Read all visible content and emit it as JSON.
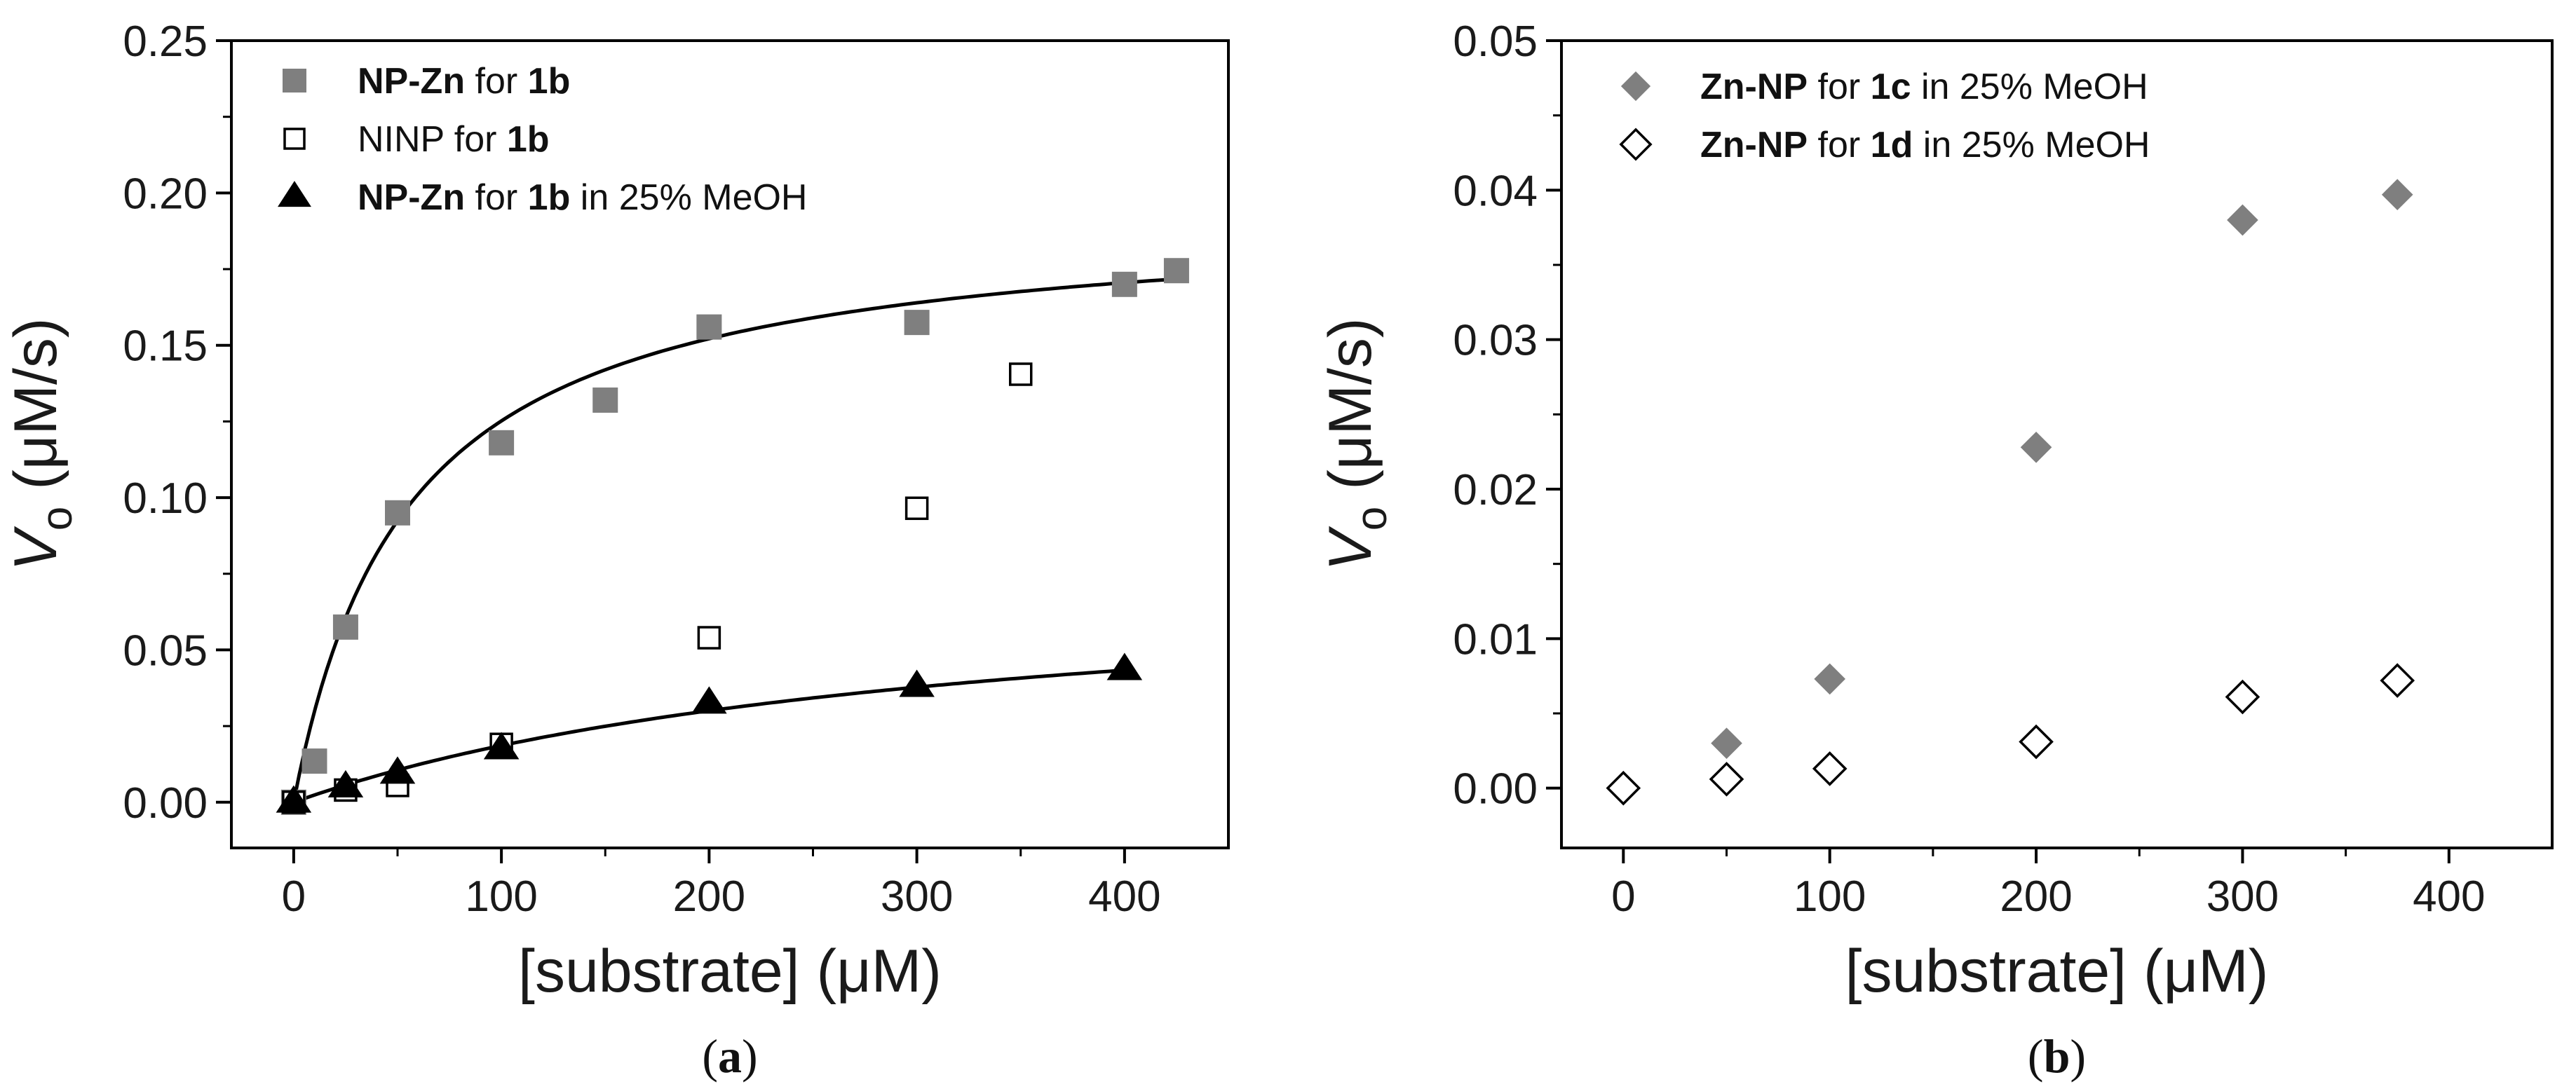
{
  "colors": {
    "gray": "#7f7f7f",
    "black": "#000000",
    "white": "#ffffff"
  },
  "chart_data": [
    {
      "type": "scatter",
      "panel_label": "a",
      "xlabel": "[substrate] (μM)",
      "ylabel": {
        "italic": "V",
        "subscript": "o",
        "rest": "(μM/s)"
      },
      "xlim": [
        -30,
        450
      ],
      "ylim": [
        -0.015,
        0.25
      ],
      "xticks": [
        0,
        100,
        200,
        300,
        400
      ],
      "yticks": [
        0.0,
        0.05,
        0.1,
        0.15,
        0.2,
        0.25
      ],
      "ytick_labels": [
        "0.00",
        "0.05",
        "0.10",
        "0.15",
        "0.20",
        "0.25"
      ],
      "legend_position": "top-left",
      "series": [
        {
          "name": "NP-Zn for 1b",
          "legend": [
            {
              "text": "NP-Zn",
              "bold": true
            },
            {
              "text": " for ",
              "bold": false
            },
            {
              "text": "1b",
              "bold": true
            }
          ],
          "marker": "square",
          "fill": "#7f7f7f",
          "x": [
            0,
            10,
            25,
            50,
            100,
            150,
            200,
            300,
            400,
            425
          ],
          "y": [
            0.0,
            0.0135,
            0.0575,
            0.095,
            0.118,
            0.132,
            0.156,
            0.1575,
            0.17,
            0.1745
          ],
          "fit": {
            "model": "michaelis-menten",
            "vmax": 0.194,
            "km": 55,
            "x_range": [
              0,
              425
            ]
          }
        },
        {
          "name": "NINP for 1b",
          "legend": [
            {
              "text": "NINP for ",
              "bold": false
            },
            {
              "text": "1b",
              "bold": true
            }
          ],
          "marker": "square-open",
          "fill": "#ffffff",
          "x": [
            0,
            25,
            50,
            100,
            200,
            300,
            350
          ],
          "y": [
            0.0,
            0.004,
            0.0055,
            0.019,
            0.054,
            0.0965,
            0.1405
          ]
        },
        {
          "name": "NP-Zn for 1b in 25% MeOH",
          "legend": [
            {
              "text": "NP-Zn",
              "bold": true
            },
            {
              "text": " for ",
              "bold": false
            },
            {
              "text": "1b",
              "bold": true
            },
            {
              "text": " in 25% MeOH",
              "bold": false
            }
          ],
          "marker": "triangle",
          "fill": "#000000",
          "x": [
            0,
            25,
            50,
            100,
            200,
            300,
            400
          ],
          "y": [
            0.0,
            0.005,
            0.0095,
            0.0175,
            0.0325,
            0.038,
            0.0435
          ],
          "fit": {
            "model": "michaelis-menten",
            "vmax": 0.0778,
            "km": 318,
            "x_range": [
              0,
              400
            ]
          }
        }
      ]
    },
    {
      "type": "scatter",
      "panel_label": "b",
      "xlabel": "[substrate] (μM)",
      "ylabel": {
        "italic": "V",
        "subscript": "o",
        "rest": "(μM/s)"
      },
      "xlim": [
        -30,
        450
      ],
      "ylim": [
        -0.004,
        0.05
      ],
      "xticks": [
        0,
        100,
        200,
        300,
        400
      ],
      "yticks": [
        0.0,
        0.01,
        0.02,
        0.03,
        0.04,
        0.05
      ],
      "ytick_labels": [
        "0.00",
        "0.01",
        "0.02",
        "0.03",
        "0.04",
        "0.05"
      ],
      "legend_position": "top-left",
      "series": [
        {
          "name": "Zn-NP for 1c in 25% MeOH",
          "legend": [
            {
              "text": "Zn-NP",
              "bold": true
            },
            {
              "text": " for ",
              "bold": false
            },
            {
              "text": "1c",
              "bold": true
            },
            {
              "text": " in 25% MeOH",
              "bold": false
            }
          ],
          "marker": "diamond",
          "fill": "#7f7f7f",
          "x": [
            50,
            100,
            200,
            300,
            375
          ],
          "y": [
            0.003,
            0.0073,
            0.0228,
            0.038,
            0.0397
          ]
        },
        {
          "name": "Zn-NP for 1d in 25% MeOH",
          "legend": [
            {
              "text": "Zn-NP",
              "bold": true
            },
            {
              "text": " for ",
              "bold": false
            },
            {
              "text": "1d",
              "bold": true
            },
            {
              "text": " in 25% MeOH",
              "bold": false
            }
          ],
          "marker": "diamond-open",
          "fill": "#ffffff",
          "x": [
            0,
            50,
            100,
            200,
            300,
            375
          ],
          "y": [
            0.0,
            0.0006,
            0.0013,
            0.0031,
            0.0061,
            0.0072
          ]
        }
      ]
    }
  ]
}
